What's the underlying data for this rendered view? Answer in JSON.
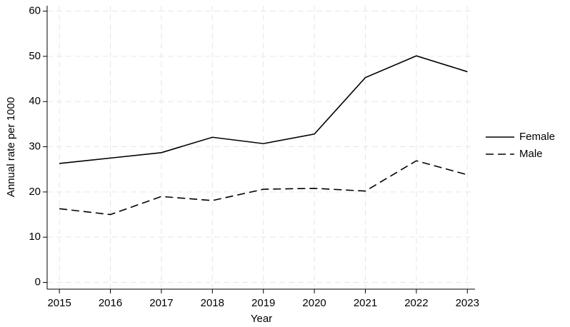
{
  "chart_data": {
    "type": "line",
    "x_label": "Year",
    "y_label": "Annual rate per 1000",
    "x": [
      2015,
      2016,
      2017,
      2018,
      2019,
      2020,
      2021,
      2022,
      2023
    ],
    "series": [
      {
        "name": "Female",
        "color": "#000000",
        "dash": "solid",
        "values": [
          26.3,
          27.5,
          28.7,
          32.1,
          30.7,
          32.8,
          45.3,
          50.1,
          46.6
        ]
      },
      {
        "name": "Male",
        "color": "#000000",
        "dash": "dashed",
        "values": [
          16.3,
          15.0,
          19.0,
          18.1,
          20.6,
          20.8,
          20.2,
          26.9,
          23.8
        ]
      }
    ],
    "xlim": [
      2014.76,
      2023.15
    ],
    "ylim": [
      -1.5,
      61.2
    ],
    "xticks": [
      2015,
      2016,
      2017,
      2018,
      2019,
      2020,
      2021,
      2022,
      2023
    ],
    "yticks": [
      0,
      10,
      20,
      30,
      40,
      50,
      60
    ],
    "grid": true,
    "legend": "right"
  }
}
